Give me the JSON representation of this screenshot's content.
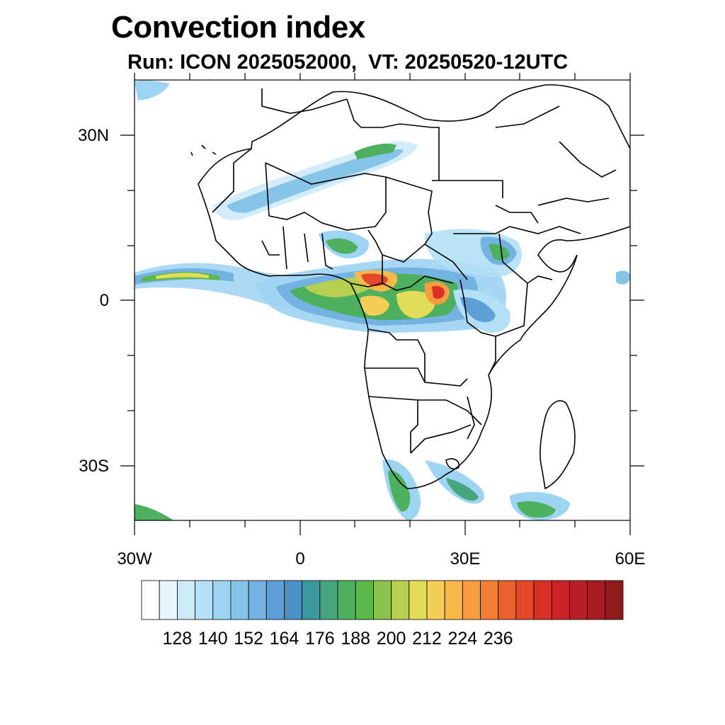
{
  "title": "Convection index",
  "subtitle": "Run: ICON 2025052000,  VT: 20250520-12UTC",
  "map": {
    "lon_range": [
      -30,
      60
    ],
    "lat_range": [
      -40,
      40
    ],
    "lat_labels": [
      {
        "lat": 30,
        "text": "30N"
      },
      {
        "lat": 0,
        "text": "0"
      },
      {
        "lat": -30,
        "text": "30S"
      }
    ],
    "lon_labels": [
      {
        "lon": -30,
        "text": "30W"
      },
      {
        "lon": 0,
        "text": "0"
      },
      {
        "lon": 30,
        "text": "30E"
      },
      {
        "lon": 60,
        "text": "60E"
      }
    ]
  },
  "colorbar": {
    "colors": [
      "#ffffff",
      "#e8f5fc",
      "#cdeaf8",
      "#b4e0f6",
      "#9dd4f2",
      "#86c4ea",
      "#74b2e2",
      "#5e9fd6",
      "#4a90c4",
      "#3f9aa0",
      "#47a57e",
      "#4cb05e",
      "#5ab94a",
      "#8cc24e",
      "#b6ce52",
      "#e2dc56",
      "#f5cf55",
      "#f8b84a",
      "#f79d3f",
      "#f17f35",
      "#eb612e",
      "#e4482a",
      "#db3028",
      "#cc2327",
      "#b81f26",
      "#a51c23",
      "#8f1a1e"
    ],
    "labels": [
      "128",
      "140",
      "152",
      "164",
      "176",
      "188",
      "200",
      "212",
      "224",
      "236"
    ]
  }
}
